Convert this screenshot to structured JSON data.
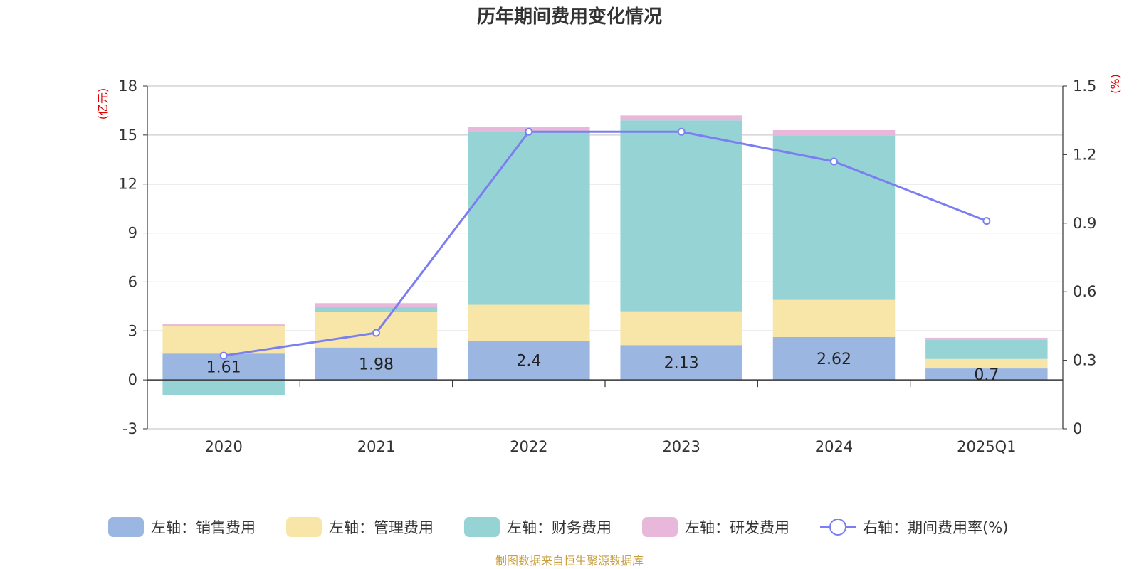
{
  "chart_data": {
    "type": "bar",
    "title": "历年期间费用变化情况",
    "categories": [
      "2020",
      "2021",
      "2022",
      "2023",
      "2024",
      "2025Q1"
    ],
    "y_left": {
      "unit": "(亿元)",
      "ylim": [
        -3,
        18
      ],
      "ticks": [
        -3,
        0,
        3,
        6,
        9,
        12,
        15,
        18
      ]
    },
    "y_right": {
      "unit": "(%)",
      "ylim": [
        0,
        1.5
      ],
      "ticks": [
        "0",
        "0.3",
        "0.6",
        "0.9",
        "1.2",
        "1.5"
      ]
    },
    "series": [
      {
        "name": "左轴：销售费用",
        "type": "bar",
        "axis": "left",
        "color": "#9bb6e0",
        "values": [
          1.61,
          1.98,
          2.4,
          2.13,
          2.62,
          0.7
        ],
        "labels": [
          "1.61",
          "1.98",
          "2.4",
          "2.13",
          "2.62",
          "0.7"
        ]
      },
      {
        "name": "左轴：管理费用",
        "type": "bar",
        "axis": "left",
        "color": "#f7e6a8",
        "values": [
          1.67,
          2.17,
          2.2,
          2.07,
          2.28,
          0.58
        ]
      },
      {
        "name": "左轴：财务费用",
        "type": "bar",
        "axis": "left",
        "color": "#96d3d4",
        "values": [
          -0.95,
          0.3,
          10.6,
          11.7,
          10.05,
          1.18
        ]
      },
      {
        "name": "左轴：研发费用",
        "type": "bar",
        "axis": "left",
        "color": "#e8b8da",
        "values": [
          0.12,
          0.25,
          0.28,
          0.3,
          0.35,
          0.12
        ]
      },
      {
        "name": "右轴：期间费用率(%)",
        "type": "line",
        "axis": "right",
        "color": "#7b7ef0",
        "values": [
          0.32,
          0.42,
          1.3,
          1.3,
          1.17,
          0.91
        ]
      }
    ],
    "legend_position": "bottom",
    "grid": true,
    "source": "制图数据来自恒生聚源数据库"
  }
}
